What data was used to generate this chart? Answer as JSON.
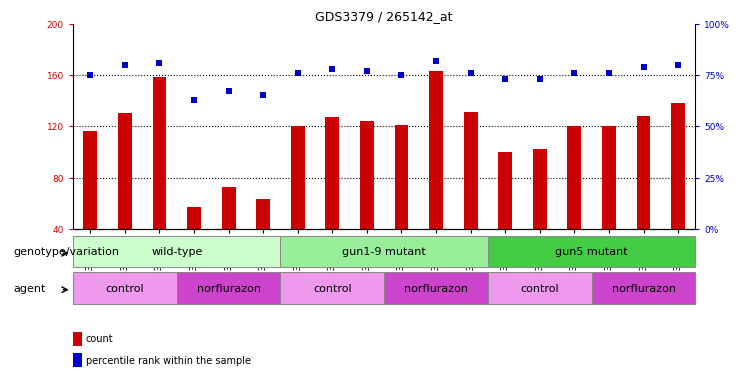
{
  "title": "GDS3379 / 265142_at",
  "samples": [
    "GSM323075",
    "GSM323076",
    "GSM323077",
    "GSM323078",
    "GSM323079",
    "GSM323080",
    "GSM323081",
    "GSM323082",
    "GSM323083",
    "GSM323084",
    "GSM323085",
    "GSM323086",
    "GSM323087",
    "GSM323088",
    "GSM323089",
    "GSM323090",
    "GSM323091",
    "GSM323092"
  ],
  "counts": [
    116,
    130,
    158,
    57,
    73,
    63,
    120,
    127,
    124,
    121,
    163,
    131,
    100,
    102,
    120,
    120,
    128,
    138
  ],
  "percentiles": [
    75,
    80,
    81,
    63,
    67,
    65,
    76,
    78,
    77,
    75,
    82,
    76,
    73,
    73,
    76,
    76,
    79,
    80
  ],
  "bar_color": "#cc0000",
  "dot_color": "#0000cc",
  "ylim_left": [
    40,
    200
  ],
  "ylim_right": [
    0,
    100
  ],
  "yticks_left": [
    40,
    80,
    120,
    160,
    200
  ],
  "yticks_right": [
    0,
    25,
    50,
    75,
    100
  ],
  "grid_values": [
    80,
    120,
    160
  ],
  "background_color": "#ffffff",
  "genotype_groups": [
    {
      "label": "wild-type",
      "start": 0,
      "end": 6,
      "color": "#ccffcc"
    },
    {
      "label": "gun1-9 mutant",
      "start": 6,
      "end": 12,
      "color": "#99ee99"
    },
    {
      "label": "gun5 mutant",
      "start": 12,
      "end": 18,
      "color": "#44cc44"
    }
  ],
  "agent_groups": [
    {
      "label": "control",
      "start": 0,
      "end": 3,
      "color": "#ee99ee"
    },
    {
      "label": "norflurazon",
      "start": 3,
      "end": 6,
      "color": "#cc44cc"
    },
    {
      "label": "control",
      "start": 6,
      "end": 9,
      "color": "#ee99ee"
    },
    {
      "label": "norflurazon",
      "start": 9,
      "end": 12,
      "color": "#cc44cc"
    },
    {
      "label": "control",
      "start": 12,
      "end": 15,
      "color": "#ee99ee"
    },
    {
      "label": "norflurazon",
      "start": 15,
      "end": 18,
      "color": "#cc44cc"
    }
  ],
  "genotype_label": "genotype/variation",
  "agent_label": "agent",
  "legend_count": "count",
  "legend_percentile": "percentile rank within the sample",
  "title_fontsize": 9,
  "tick_fontsize": 6.5,
  "label_fontsize": 8,
  "annot_fontsize": 8
}
